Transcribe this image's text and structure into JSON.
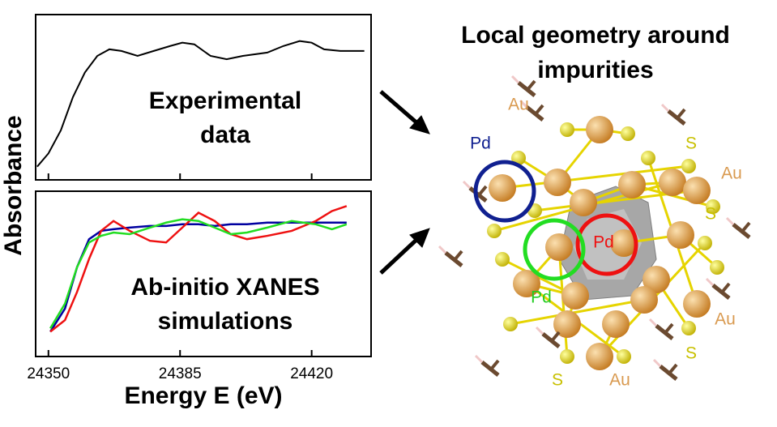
{
  "chart_data": [
    {
      "type": "line",
      "xlim": [
        24346.6,
        24435.8
      ],
      "ylim": [
        0,
        1
      ],
      "ylabel": "Absorbance",
      "annotation": [
        "Experimental",
        "data"
      ],
      "x": [
        24347.0,
        24350.0,
        24353.3,
        24356.5,
        24359.7,
        24363.0,
        24366.2,
        24369.4,
        24373.7,
        24378.0,
        24382.4,
        24385.6,
        24388.8,
        24393.1,
        24397.4,
        24401.7,
        24408.2,
        24412.5,
        24416.8,
        24420.0,
        24423.3,
        24427.6,
        24434.0
      ],
      "series": [
        {
          "color": "#000000",
          "values": [
            0.08,
            0.16,
            0.3,
            0.5,
            0.65,
            0.75,
            0.79,
            0.78,
            0.75,
            0.78,
            0.81,
            0.83,
            0.82,
            0.75,
            0.73,
            0.75,
            0.77,
            0.81,
            0.84,
            0.83,
            0.79,
            0.78,
            0.78
          ]
        }
      ]
    },
    {
      "type": "line",
      "xlim": [
        24346.6,
        24435.8
      ],
      "ylim": [
        0,
        1
      ],
      "xticks": [
        24350,
        24385,
        24420
      ],
      "xlabel": "Energy E (eV)",
      "annotation": [
        "Ab-initio XANES",
        "simulations"
      ],
      "x": [
        24350.5,
        24354.4,
        24357.6,
        24360.8,
        24364.0,
        24367.3,
        24371.6,
        24377.0,
        24381.3,
        24385.6,
        24389.9,
        24394.2,
        24398.5,
        24402.8,
        24408.2,
        24414.7,
        24421.1,
        24425.4,
        24429.3
      ],
      "series": [
        {
          "color": "#0000a0",
          "values": [
            0.15,
            0.29,
            0.54,
            0.71,
            0.76,
            0.77,
            0.78,
            0.79,
            0.79,
            0.8,
            0.8,
            0.79,
            0.8,
            0.8,
            0.81,
            0.81,
            0.81,
            0.81,
            0.81
          ]
        },
        {
          "color": "#ee1111",
          "values": [
            0.15,
            0.22,
            0.39,
            0.59,
            0.76,
            0.82,
            0.76,
            0.7,
            0.69,
            0.78,
            0.87,
            0.82,
            0.74,
            0.71,
            0.73,
            0.76,
            0.82,
            0.88,
            0.91
          ]
        },
        {
          "color": "#22dd22",
          "values": [
            0.17,
            0.32,
            0.54,
            0.69,
            0.73,
            0.75,
            0.74,
            0.78,
            0.81,
            0.83,
            0.82,
            0.78,
            0.74,
            0.75,
            0.78,
            0.82,
            0.8,
            0.77,
            0.8
          ]
        }
      ]
    }
  ],
  "illustration": {
    "title": [
      "Local geometry around",
      "impurities"
    ],
    "labels": [
      "Au",
      "Pd",
      "S",
      "Au",
      "S",
      "Pd",
      "Pd",
      "Au",
      "S",
      "S",
      "Au"
    ]
  }
}
